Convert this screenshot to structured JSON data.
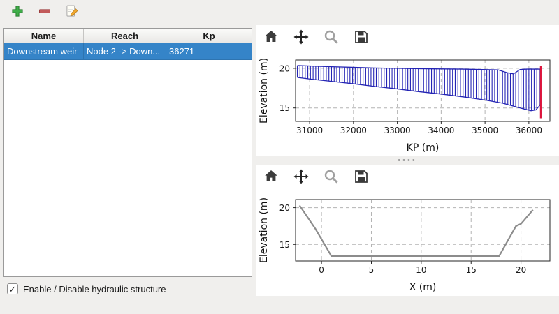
{
  "app_toolbar": {
    "buttons": [
      {
        "id": "add-structure",
        "icon": "plus-icon"
      },
      {
        "id": "remove-structure",
        "icon": "minus-icon"
      },
      {
        "id": "edit-structure",
        "icon": "edit-pencil-icon"
      }
    ]
  },
  "structures_table": {
    "columns": [
      "Name",
      "Reach",
      "Kp"
    ],
    "rows": [
      {
        "name": "Downstream weir",
        "reach": "Node 2 -> Down...",
        "kp": "36271"
      }
    ],
    "selected_row": 0,
    "selection_color": "#3584c8"
  },
  "footer": {
    "checkbox_label": "Enable / Disable hydraulic structure",
    "checked": true
  },
  "plot_toolbar_buttons": [
    "home",
    "pan",
    "zoom",
    "save"
  ],
  "chart_data": [
    {
      "type": "area",
      "xlabel": "KP (m)",
      "ylabel": "Elevation (m)",
      "xlim": [
        30680,
        36480
      ],
      "ylim": [
        13.3,
        21.05
      ],
      "xticks": [
        31000,
        32000,
        33000,
        34000,
        35000,
        36000
      ],
      "yticks": [
        15,
        20
      ],
      "grid": true,
      "color": "#2424b4",
      "hatch_step": 60,
      "series": [
        {
          "name": "bank-top-profile",
          "x": [
            30720,
            31500,
            32500,
            33500,
            34500,
            35300,
            35500,
            35650,
            35800,
            35950,
            36270
          ],
          "y": [
            20.35,
            20.2,
            20.05,
            19.95,
            19.9,
            19.8,
            19.45,
            19.3,
            19.85,
            19.9,
            19.9
          ]
        },
        {
          "name": "bed-bottom-profile",
          "x": [
            30720,
            31000,
            31500,
            32000,
            32500,
            33000,
            33500,
            34000,
            34500,
            35000,
            35400,
            35700,
            35900,
            36050,
            36160,
            36270
          ],
          "y": [
            18.85,
            18.65,
            18.35,
            18.05,
            17.7,
            17.4,
            17.05,
            16.75,
            16.4,
            16.0,
            15.6,
            15.15,
            14.85,
            14.65,
            14.75,
            15.45
          ]
        }
      ],
      "marker": {
        "name": "structure-location",
        "x": 36271,
        "y0": 13.7,
        "y1": 20.3,
        "color": "#dc143c"
      }
    },
    {
      "type": "line",
      "xlabel": "X (m)",
      "ylabel": "Elevation (m)",
      "xlim": [
        -2.6,
        22.9
      ],
      "ylim": [
        12.75,
        21.1
      ],
      "xticks": [
        0,
        5,
        10,
        15,
        20
      ],
      "yticks": [
        15,
        20
      ],
      "grid": true,
      "color": "#8c8c8c",
      "series": [
        {
          "name": "cross-section",
          "x": [
            -2.2,
            -0.6,
            1.0,
            17.8,
            19.5,
            20.0,
            21.2
          ],
          "y": [
            20.3,
            17.1,
            13.4,
            13.4,
            17.5,
            17.8,
            19.7
          ]
        }
      ]
    }
  ]
}
